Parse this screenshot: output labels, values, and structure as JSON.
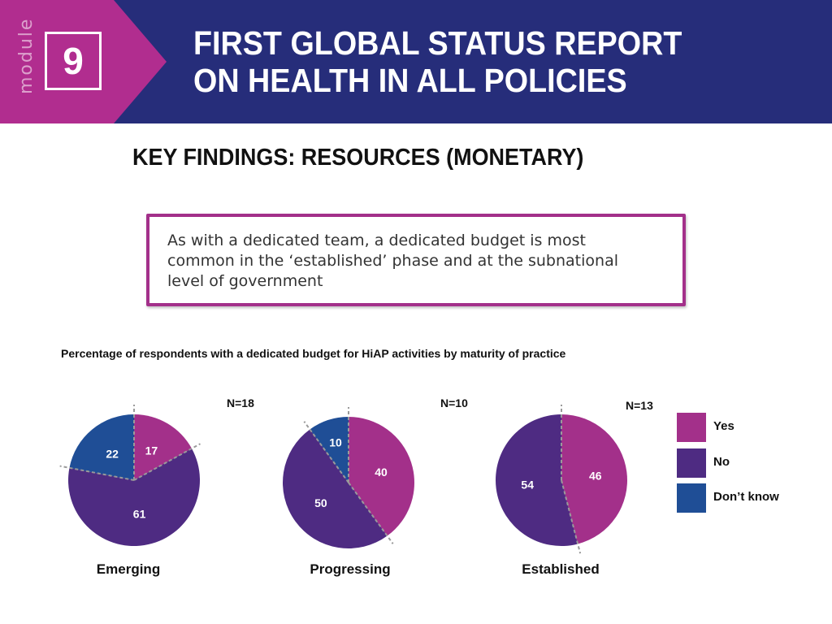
{
  "header": {
    "module_word": "module",
    "module_number": "9",
    "title_line1": "FIRST GLOBAL STATUS REPORT",
    "title_line2": "ON HEALTH IN ALL POLICIES"
  },
  "section_title": "KEY FINDINGS: RESOURCES (MONETARY)",
  "finding_text": "As with a dedicated team, a dedicated budget is most common in the ‘established’ phase and at the subnational level of government",
  "colors": {
    "header_bg": "#262d7a",
    "magenta": "#a3308a",
    "yes": "#a3308a",
    "no": "#4e2b82",
    "dont_know": "#1f4e96"
  },
  "chart_data": {
    "type": "pie",
    "title": "Percentage of respondents with a dedicated budget for HiAP activities by maturity of practice",
    "legend": [
      "Yes",
      "No",
      "Don’t know"
    ],
    "legend_placement": "right",
    "pies": [
      {
        "name": "Emerging",
        "n_label": "N=18",
        "values": [
          17,
          61,
          22
        ]
      },
      {
        "name": "Progressing",
        "n_label": "N=10",
        "values": [
          40,
          50,
          10
        ]
      },
      {
        "name": "Established",
        "n_label": "N=13",
        "values": [
          46,
          54,
          0
        ]
      }
    ]
  }
}
